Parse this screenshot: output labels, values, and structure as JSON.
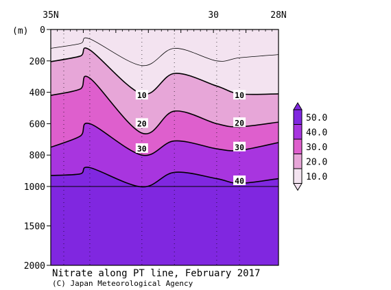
{
  "chart_data": {
    "type": "contour",
    "title": "Nitrate along PT line, February 2017",
    "credit": "(C) Japan Meteorological Agency",
    "ylabel": "(m)",
    "y_inverted": true,
    "ylim": [
      0,
      2000
    ],
    "x_tick_labels": [
      {
        "lat": 35,
        "label": "35N"
      },
      {
        "lat": 30,
        "label": "30"
      },
      {
        "lat": 28,
        "label": "28N"
      }
    ],
    "y_ticks": [
      0,
      200,
      400,
      600,
      800,
      1000,
      1500,
      2000
    ],
    "colorbar": {
      "labels": [
        "50.0",
        "40.0",
        "30.0",
        "20.0",
        "10.0"
      ],
      "bands": [
        {
          "min": 0,
          "max": 10,
          "color": "#f3e3f0"
        },
        {
          "min": 10,
          "max": 20,
          "color": "#e7a6d8"
        },
        {
          "min": 20,
          "max": 30,
          "color": "#de5fcd"
        },
        {
          "min": 30,
          "max": 40,
          "color": "#a835df"
        },
        {
          "min": 40,
          "max": 50,
          "color": "#8027e0"
        }
      ]
    },
    "contour_labels": [
      {
        "value": "10",
        "lat": 32.2,
        "depth": 420
      },
      {
        "value": "10",
        "lat": 29.2,
        "depth": 420
      },
      {
        "value": "20",
        "lat": 32.2,
        "depth": 600
      },
      {
        "value": "20",
        "lat": 29.2,
        "depth": 595
      },
      {
        "value": "30",
        "lat": 32.2,
        "depth": 760
      },
      {
        "value": "30",
        "lat": 29.2,
        "depth": 750
      },
      {
        "value": "40",
        "lat": 29.2,
        "depth": 965
      }
    ],
    "stations_lat": [
      34.6,
      33.8,
      32.2,
      31.2,
      29.9,
      29.2
    ],
    "isolines": {
      "lat": [
        35.0,
        34.1,
        33.8,
        32.2,
        31.2,
        29.9,
        29.2,
        28.0
      ],
      "levels": [
        {
          "value": 5,
          "depth": [
            120,
            90,
            60,
            230,
            120,
            200,
            180,
            160
          ]
        },
        {
          "value": 10,
          "depth": [
            205,
            170,
            130,
            410,
            280,
            360,
            410,
            410
          ]
        },
        {
          "value": 20,
          "depth": [
            420,
            380,
            310,
            660,
            520,
            600,
            620,
            590
          ]
        },
        {
          "value": 30,
          "depth": [
            750,
            680,
            600,
            800,
            710,
            760,
            770,
            720
          ]
        },
        {
          "value": 40,
          "depth": [
            930,
            920,
            880,
            1005,
            910,
            950,
            980,
            950
          ]
        }
      ]
    }
  }
}
